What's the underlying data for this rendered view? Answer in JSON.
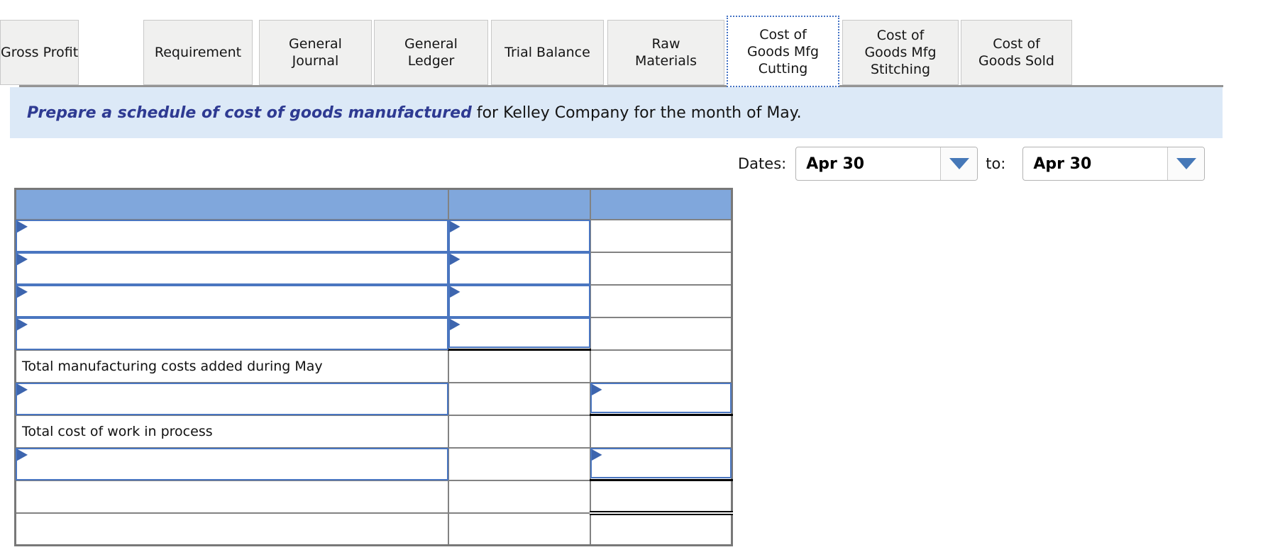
{
  "tabs": [
    {
      "label": "Requirement",
      "active": false
    },
    {
      "label": "General\nJournal",
      "active": false
    },
    {
      "label": "General\nLedger",
      "active": false
    },
    {
      "label": "Trial Balance",
      "active": false
    },
    {
      "label": "Raw\nMaterials",
      "active": false
    },
    {
      "label": "Cost of\nGoods Mfg\nCutting",
      "active": true
    },
    {
      "label": "Cost of\nGoods Mfg\nStitching",
      "active": false
    },
    {
      "label": "Cost of\nGoods Sold",
      "active": false
    },
    {
      "label": "Gross Profit",
      "active": false
    }
  ],
  "instruction": {
    "emphasis": "Prepare a schedule of cost of goods manufactured",
    "rest": " for Kelley Company for the month of May."
  },
  "dates": {
    "label": "Dates:",
    "from_value": "Apr 30",
    "to_label": "to:",
    "to_value": "Apr 30"
  },
  "worksheet": {
    "header_columns": [
      "",
      "",
      ""
    ],
    "rows": [
      {
        "label": "",
        "inputs": [
          "c1",
          "c2"
        ],
        "underline": ""
      },
      {
        "label": "",
        "inputs": [
          "c1",
          "c2"
        ],
        "underline": ""
      },
      {
        "label": "",
        "inputs": [
          "c1",
          "c2"
        ],
        "underline": ""
      },
      {
        "label": "",
        "inputs": [
          "c1",
          "c2"
        ],
        "underline": "c2-single"
      },
      {
        "label": "Total manufacturing costs added during May",
        "inputs": [],
        "underline": ""
      },
      {
        "label": "",
        "inputs": [
          "c1",
          "c3"
        ],
        "underline": "c3-single"
      },
      {
        "label": "Total cost of work in process",
        "inputs": [],
        "underline": ""
      },
      {
        "label": "",
        "inputs": [
          "c1",
          "c3"
        ],
        "underline": "c3-single"
      },
      {
        "label": "",
        "inputs": [],
        "underline": "c3-double"
      },
      {
        "label": "",
        "inputs": [],
        "underline": ""
      }
    ]
  },
  "colors": {
    "accent_blue": "#4472c4",
    "input_border_blue": "#4a76c0",
    "flag_blue": "#3d65ae",
    "header_fill_blue": "#80a7dc",
    "banner_bg": "#dce9f7",
    "banner_emphasis": "#2e3a92",
    "grid_gray": "#828282",
    "tab_bg": "#f0f0ef",
    "arrow_blue": "#4678b8"
  },
  "icons": {
    "dropdown_arrow": "triangle-down",
    "input_flag": "triangle-right"
  }
}
